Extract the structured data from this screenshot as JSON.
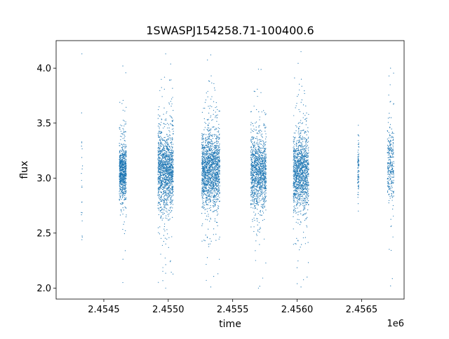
{
  "chart_data": {
    "type": "scatter",
    "title": "1SWASPJ154258.71-100400.6",
    "xlabel": "time",
    "ylabel": "flux",
    "x_offset_label": "1e6",
    "xlim": [
      2.45413,
      2.45683
    ],
    "ylim": [
      1.9,
      4.25
    ],
    "x_ticks": [
      2.4545,
      2.455,
      2.4555,
      2.456,
      2.4565
    ],
    "x_tick_labels": [
      "2.4545",
      "2.4550",
      "2.4555",
      "2.4560",
      "2.4565"
    ],
    "y_ticks": [
      2.0,
      2.5,
      3.0,
      3.5,
      4.0
    ],
    "y_tick_labels": [
      "2.0",
      "2.5",
      "3.0",
      "3.5",
      "4.0"
    ],
    "grid": false,
    "legend": "none",
    "point_color": "#1f77b4",
    "series": [
      {
        "clusters": [
          {
            "x_range": [
              2.454325,
              2.454335
            ],
            "center": 3.1,
            "core_spread": 0.4,
            "extent": [
              2.44,
              4.13
            ],
            "count": 20
          },
          {
            "x_range": [
              2.45462,
              2.454675
            ],
            "center": 3.06,
            "core_spread": 0.12,
            "extent": [
              2.05,
              4.02
            ],
            "count": 800
          },
          {
            "x_range": [
              2.45492,
              2.45504
            ],
            "center": 3.07,
            "core_spread": 0.17,
            "extent": [
              2.0,
              4.13
            ],
            "count": 1400
          },
          {
            "x_range": [
              2.45526,
              2.4554
            ],
            "center": 3.08,
            "core_spread": 0.16,
            "extent": [
              2.01,
              4.12
            ],
            "count": 1600
          },
          {
            "x_range": [
              2.45564,
              2.45576
            ],
            "center": 3.06,
            "core_spread": 0.15,
            "extent": [
              2.0,
              3.99
            ],
            "count": 1200
          },
          {
            "x_range": [
              2.45597,
              2.45609
            ],
            "center": 3.05,
            "core_spread": 0.16,
            "extent": [
              2.01,
              4.15
            ],
            "count": 1300
          },
          {
            "x_range": [
              2.45647,
              2.45648
            ],
            "center": 3.1,
            "core_spread": 0.13,
            "extent": [
              2.7,
              3.48
            ],
            "count": 90
          },
          {
            "x_range": [
              2.4567,
              2.45675
            ],
            "center": 3.12,
            "core_spread": 0.16,
            "extent": [
              2.02,
              4.0
            ],
            "count": 300
          }
        ]
      }
    ]
  }
}
